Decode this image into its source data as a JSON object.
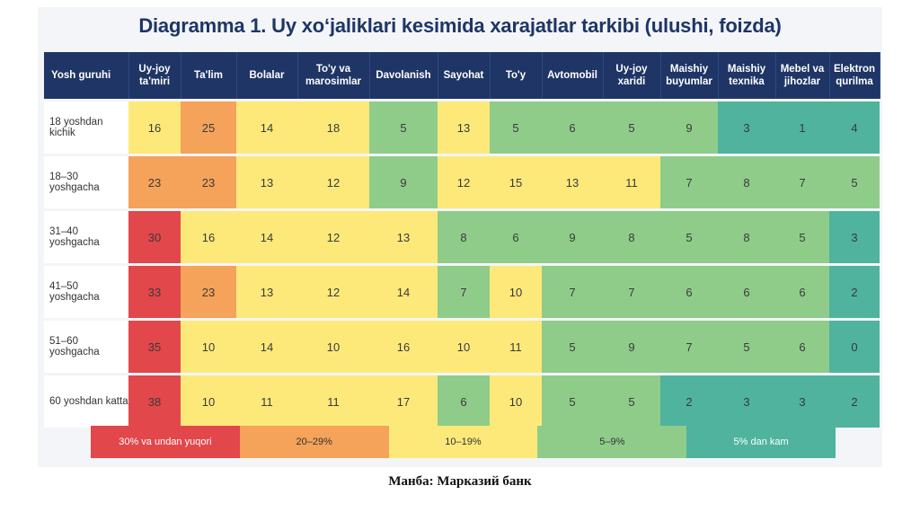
{
  "chart_data": {
    "type": "heatmap",
    "title": "Diagramma 1. Uy xoʻjaliklari kesimida xarajatlar tarkibi (ulushi, foizda)",
    "row_header": "Yosh guruhi",
    "columns": [
      {
        "top": "Uy-joy",
        "bottom": "ta'miri"
      },
      {
        "top": "Ta'lim",
        "bottom": ""
      },
      {
        "top": "Bolalar",
        "bottom": ""
      },
      {
        "top": "To'y va",
        "bottom": "marosimlar"
      },
      {
        "top": "Davolanish",
        "bottom": ""
      },
      {
        "top": "Sayohat",
        "bottom": ""
      },
      {
        "top": "To'y",
        "bottom": ""
      },
      {
        "top": "Avtomobil",
        "bottom": ""
      },
      {
        "top": "Uy-joy",
        "bottom": "xaridi"
      },
      {
        "top": "Maishiy",
        "bottom": "buyumlar"
      },
      {
        "top": "Maishiy",
        "bottom": "texnika"
      },
      {
        "top": "Mebel va",
        "bottom": "jihozlar"
      },
      {
        "top": "Elektron",
        "bottom": "qurilma"
      }
    ],
    "rows": [
      "18 yoshdan kichik",
      "18–30 yoshgacha",
      "31–40 yoshgacha",
      "41–50 yoshgacha",
      "51–60 yoshgacha",
      "60 yoshdan katta"
    ],
    "values": [
      [
        16,
        25,
        14,
        18,
        5,
        13,
        5,
        6,
        5,
        9,
        3,
        1,
        4
      ],
      [
        23,
        23,
        13,
        12,
        9,
        12,
        15,
        13,
        11,
        7,
        8,
        7,
        5
      ],
      [
        30,
        16,
        14,
        12,
        13,
        8,
        6,
        9,
        8,
        5,
        8,
        5,
        3
      ],
      [
        33,
        23,
        13,
        12,
        14,
        7,
        10,
        7,
        7,
        6,
        6,
        6,
        2
      ],
      [
        35,
        10,
        14,
        10,
        16,
        10,
        11,
        5,
        9,
        7,
        5,
        6,
        0
      ],
      [
        38,
        10,
        11,
        11,
        17,
        6,
        10,
        5,
        5,
        2,
        3,
        3,
        2
      ]
    ],
    "legend": [
      {
        "label": "30% va undan yuqori",
        "color": "#e2474b",
        "text_color": "#ffffff"
      },
      {
        "label": "20–29%",
        "color": "#f5a25a",
        "text_color": "#333333"
      },
      {
        "label": "10–19%",
        "color": "#fde97a",
        "text_color": "#333333"
      },
      {
        "label": "5–9%",
        "color": "#8fcc8a",
        "text_color": "#333333"
      },
      {
        "label": "5% dan kam",
        "color": "#4fb39e",
        "text_color": "#ffffff"
      }
    ]
  },
  "source": "Манба: Марказий банк"
}
